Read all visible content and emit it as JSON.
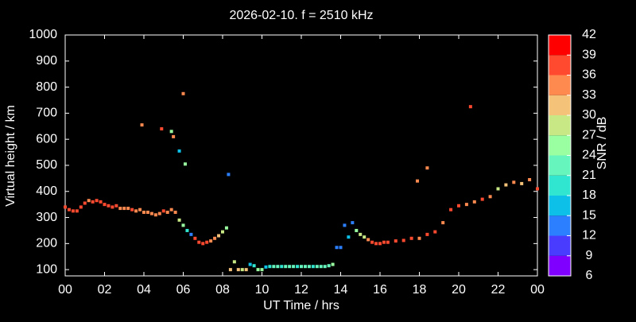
{
  "chart_data": {
    "type": "scatter",
    "title": "2026-02-10. f = 2510 kHz",
    "x_label": "UT Time / hrs",
    "y_label": "Virtual height / km",
    "colorbar_label": "SNR / dB",
    "xlim": [
      0,
      24
    ],
    "xticks": [
      {
        "value": 0,
        "label": "00"
      },
      {
        "value": 2,
        "label": "02"
      },
      {
        "value": 4,
        "label": "04"
      },
      {
        "value": 6,
        "label": "06"
      },
      {
        "value": 8,
        "label": "08"
      },
      10,
      12,
      14,
      16,
      18,
      20,
      22,
      {
        "value": 24,
        "label": "00"
      }
    ],
    "ylim": [
      76,
      1000
    ],
    "yticks": [
      100,
      200,
      300,
      400,
      500,
      600,
      700,
      800,
      900,
      1000
    ],
    "clim": [
      6,
      42
    ],
    "cticks": [
      6,
      9,
      12,
      15,
      18,
      21,
      24,
      27,
      30,
      33,
      36,
      39,
      42
    ],
    "colormap": [
      "#7f00ff",
      "#4a3cff",
      "#2c7fff",
      "#0cc0e8",
      "#30e6d0",
      "#66f5bd",
      "#99ffa0",
      "#c8e886",
      "#f5c27a",
      "#ff8a50",
      "#ff4a30",
      "#ff0000"
    ],
    "series": [
      {
        "name": "SNR",
        "x": [
          0.0,
          0.2,
          0.4,
          0.6,
          0.8,
          1.0,
          1.2,
          1.4,
          1.6,
          1.8,
          2.0,
          2.2,
          2.4,
          2.6,
          2.8,
          3.0,
          3.2,
          3.4,
          3.6,
          3.8,
          4.0,
          4.2,
          4.4,
          4.6,
          4.8,
          5.0,
          5.2,
          5.4,
          5.6,
          5.8,
          6.0,
          6.2,
          6.4,
          6.6,
          6.8,
          7.0,
          7.2,
          7.4,
          7.6,
          7.8,
          8.0,
          8.2,
          8.4,
          8.6,
          8.8,
          9.0,
          9.2,
          9.4,
          9.6,
          9.8,
          10.0,
          10.2,
          10.4,
          10.6,
          10.8,
          11.0,
          11.2,
          11.4,
          11.6,
          11.8,
          12.0,
          12.2,
          12.4,
          12.6,
          12.8,
          13.0,
          13.2,
          13.4,
          13.6,
          13.8,
          14.0,
          14.2,
          14.4,
          14.6,
          14.8,
          15.0,
          15.2,
          15.4,
          15.6,
          15.8,
          16.0,
          16.2,
          16.4,
          16.8,
          17.2,
          17.6,
          18.0,
          18.4,
          18.8,
          19.2,
          19.6,
          20.0,
          20.4,
          20.8,
          21.2,
          21.6,
          22.0,
          22.4,
          22.8,
          23.2,
          23.6,
          24.0,
          3.9,
          4.9,
          5.4,
          5.5,
          5.8,
          6.0,
          6.1,
          8.3,
          17.9,
          18.4,
          20.6
        ],
        "values": [
          340,
          330,
          325,
          325,
          340,
          355,
          365,
          360,
          365,
          360,
          350,
          345,
          340,
          345,
          335,
          335,
          335,
          330,
          325,
          330,
          320,
          320,
          315,
          310,
          315,
          325,
          320,
          330,
          320,
          290,
          270,
          250,
          235,
          220,
          205,
          200,
          205,
          210,
          220,
          230,
          245,
          260,
          100,
          130,
          100,
          100,
          100,
          120,
          115,
          100,
          100,
          110,
          112,
          112,
          112,
          112,
          112,
          112,
          112,
          112,
          112,
          112,
          112,
          112,
          112,
          112,
          112,
          115,
          120,
          185,
          185,
          270,
          225,
          280,
          250,
          235,
          225,
          215,
          205,
          200,
          200,
          205,
          205,
          210,
          212,
          220,
          220,
          235,
          245,
          280,
          330,
          345,
          350,
          360,
          370,
          380,
          410,
          425,
          435,
          430,
          445,
          410,
          655,
          640,
          630,
          610,
          555,
          775,
          505,
          465,
          440,
          490,
          725
        ],
        "snr": [
          36,
          36,
          36,
          37,
          36,
          36,
          34,
          36,
          36,
          36,
          36,
          36,
          36,
          38,
          34,
          33,
          34,
          36,
          34,
          34,
          33,
          33,
          33,
          34,
          33,
          38,
          34,
          33,
          34,
          27,
          24,
          18,
          12,
          36,
          37,
          38,
          36,
          34,
          33,
          30,
          27,
          24,
          30,
          27,
          30,
          27,
          30,
          15,
          18,
          24,
          24,
          15,
          18,
          21,
          21,
          20,
          21,
          22,
          21,
          20,
          21,
          22,
          21,
          20,
          21,
          22,
          21,
          21,
          24,
          12,
          12,
          12,
          15,
          12,
          24,
          27,
          28,
          33,
          36,
          38,
          37,
          36,
          37,
          36,
          38,
          36,
          33,
          37,
          36,
          34,
          36,
          36,
          34,
          33,
          36,
          34,
          27,
          30,
          34,
          30,
          33,
          36,
          33,
          36,
          24,
          33,
          15,
          33,
          24,
          12,
          33,
          33,
          36
        ]
      }
    ]
  }
}
